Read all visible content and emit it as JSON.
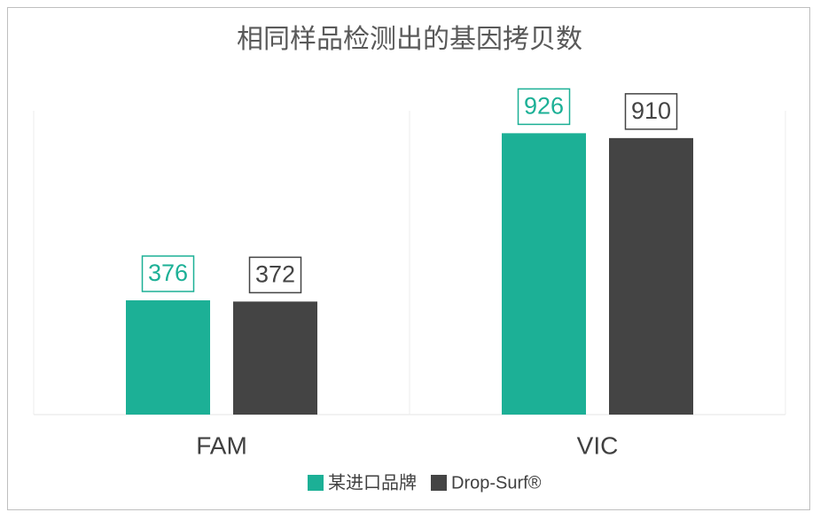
{
  "chart_data": {
    "type": "bar",
    "title": "相同样品检测出的基因拷贝数",
    "categories": [
      "FAM",
      "VIC"
    ],
    "series": [
      {
        "name": "某进口品牌",
        "color": "#1cb096",
        "values": [
          376,
          926
        ]
      },
      {
        "name": "Drop-Surf®",
        "color": "#444444",
        "values": [
          372,
          910
        ]
      }
    ],
    "ylim": [
      0,
      1000
    ],
    "legend": "bottom"
  }
}
